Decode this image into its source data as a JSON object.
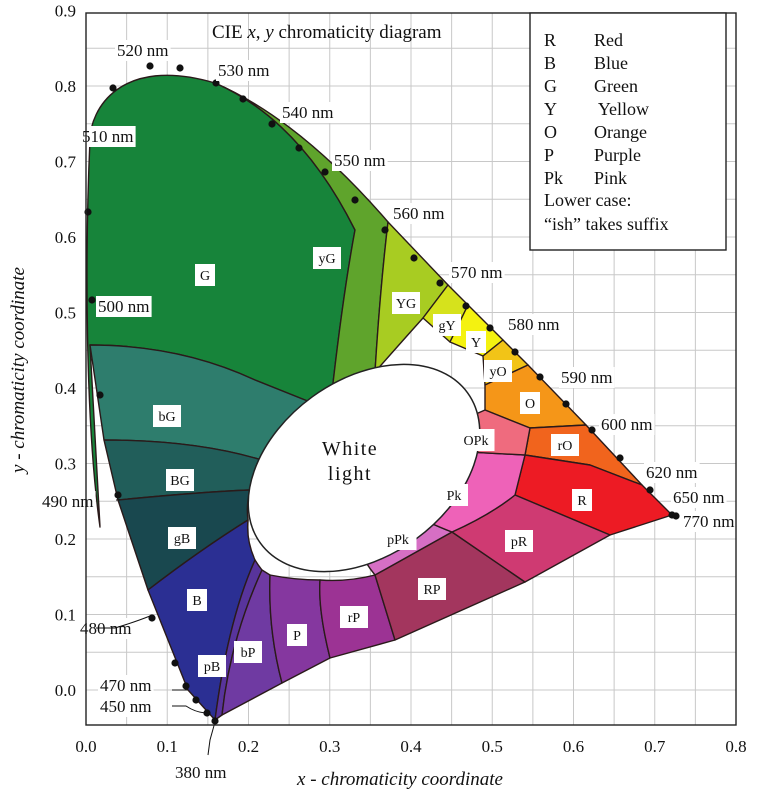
{
  "title": "CIE x, y chromaticity diagram",
  "axes": {
    "xlabel": "x - chromaticity coordinate",
    "ylabel": "y - chromaticity coordinate",
    "xticks": [
      "0.0",
      "0.1",
      "0.2",
      "0.3",
      "0.4",
      "0.5",
      "0.6",
      "0.7",
      "0.8"
    ],
    "yticks": [
      "0.0",
      "0.1",
      "0.2",
      "0.3",
      "0.4",
      "0.5",
      "0.6",
      "0.7",
      "0.8",
      "0.9"
    ]
  },
  "center_label": [
    "White",
    "light"
  ],
  "wavelengths": [
    {
      "label": "520 nm"
    },
    {
      "label": "530 nm"
    },
    {
      "label": "510 nm"
    },
    {
      "label": "540 nm"
    },
    {
      "label": "550 nm"
    },
    {
      "label": "560 nm"
    },
    {
      "label": "570 nm"
    },
    {
      "label": "580 nm"
    },
    {
      "label": "500 nm"
    },
    {
      "label": "590 nm"
    },
    {
      "label": "600 nm"
    },
    {
      "label": "620 nm"
    },
    {
      "label": "490 nm"
    },
    {
      "label": "650 nm"
    },
    {
      "label": "770 nm"
    },
    {
      "label": "480 nm"
    },
    {
      "label": "470 nm"
    },
    {
      "label": "450 nm"
    },
    {
      "label": "380 nm"
    }
  ],
  "regions": [
    {
      "label": "G",
      "color": "#17843a"
    },
    {
      "label": "yG",
      "color": "#5fa42c"
    },
    {
      "label": "YG",
      "color": "#a8cc22"
    },
    {
      "label": "gY",
      "color": "#d6e21c"
    },
    {
      "label": "Y",
      "color": "#f4f210"
    },
    {
      "label": "yO",
      "color": "#f2c417"
    },
    {
      "label": "O",
      "color": "#f59618"
    },
    {
      "label": "rO",
      "color": "#f1641d"
    },
    {
      "label": "R",
      "color": "#ed1b24"
    },
    {
      "label": "bG",
      "color": "#2e7d6d"
    },
    {
      "label": "BG",
      "color": "#215e5a"
    },
    {
      "label": "gB",
      "color": "#19484f"
    },
    {
      "label": "B",
      "color": "#2b2f93"
    },
    {
      "label": "pB",
      "color": "#58349c"
    },
    {
      "label": "bP",
      "color": "#6f3aa2"
    },
    {
      "label": "P",
      "color": "#85379f"
    },
    {
      "label": "rP",
      "color": "#9c3394"
    },
    {
      "label": "RP",
      "color": "#a3365e"
    },
    {
      "label": "pR",
      "color": "#cf3a72"
    },
    {
      "label": "pPk",
      "color": "#d66fc4"
    },
    {
      "label": "Pk",
      "color": "#ee62b8"
    },
    {
      "label": "OPk",
      "color": "#ef6b7e"
    }
  ],
  "legend": {
    "items": [
      {
        "code": "R",
        "name": "Red"
      },
      {
        "code": "B",
        "name": "Blue"
      },
      {
        "code": "G",
        "name": "Green"
      },
      {
        "code": "Y",
        "name": " Yellow"
      },
      {
        "code": "O",
        "name": "Orange"
      },
      {
        "code": "P",
        "name": "Purple"
      },
      {
        "code": "Pk",
        "name": "Pink"
      }
    ],
    "note_line1": "Lower case:",
    "note_line2": "“ish” takes suffix"
  }
}
